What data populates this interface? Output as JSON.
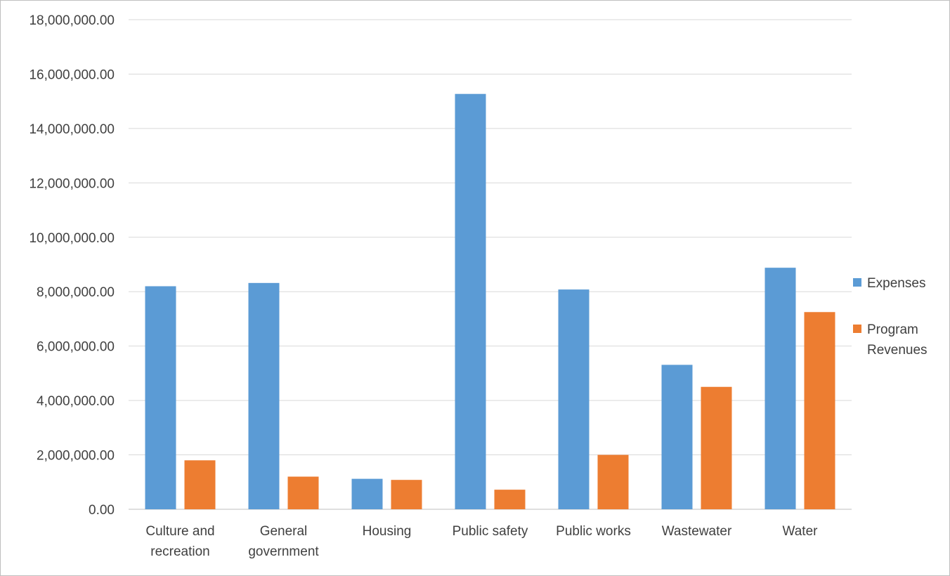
{
  "chart_data": {
    "type": "bar",
    "categories": [
      "Culture and recreation",
      "General government",
      "Housing",
      "Public safety",
      "Public works",
      "Wastewater",
      "Water"
    ],
    "category_lines": [
      [
        "Culture and",
        "recreation"
      ],
      [
        "General",
        "government"
      ],
      [
        "Housing"
      ],
      [
        "Public safety"
      ],
      [
        "Public works"
      ],
      [
        "Wastewater"
      ],
      [
        "Water"
      ]
    ],
    "series": [
      {
        "name": "Expenses",
        "color": "#5b9bd5",
        "values": [
          8200000,
          8320000,
          1120000,
          15270000,
          8080000,
          5310000,
          8880000
        ]
      },
      {
        "name": "Program",
        "name_line2": "Revenues",
        "color": "#ed7d31",
        "values": [
          1800000,
          1200000,
          1080000,
          720000,
          2000000,
          4500000,
          7250000
        ]
      }
    ],
    "ylim": [
      0,
      18000000
    ],
    "yticks": [
      "0.00",
      "2,000,000.00",
      "4,000,000.00",
      "6,000,000.00",
      "8,000,000.00",
      "10,000,000.00",
      "12,000,000.00",
      "14,000,000.00",
      "16,000,000.00",
      "18,000,000.00"
    ],
    "grid": true,
    "legend_position": "right",
    "title": "",
    "xlabel": "",
    "ylabel": ""
  }
}
